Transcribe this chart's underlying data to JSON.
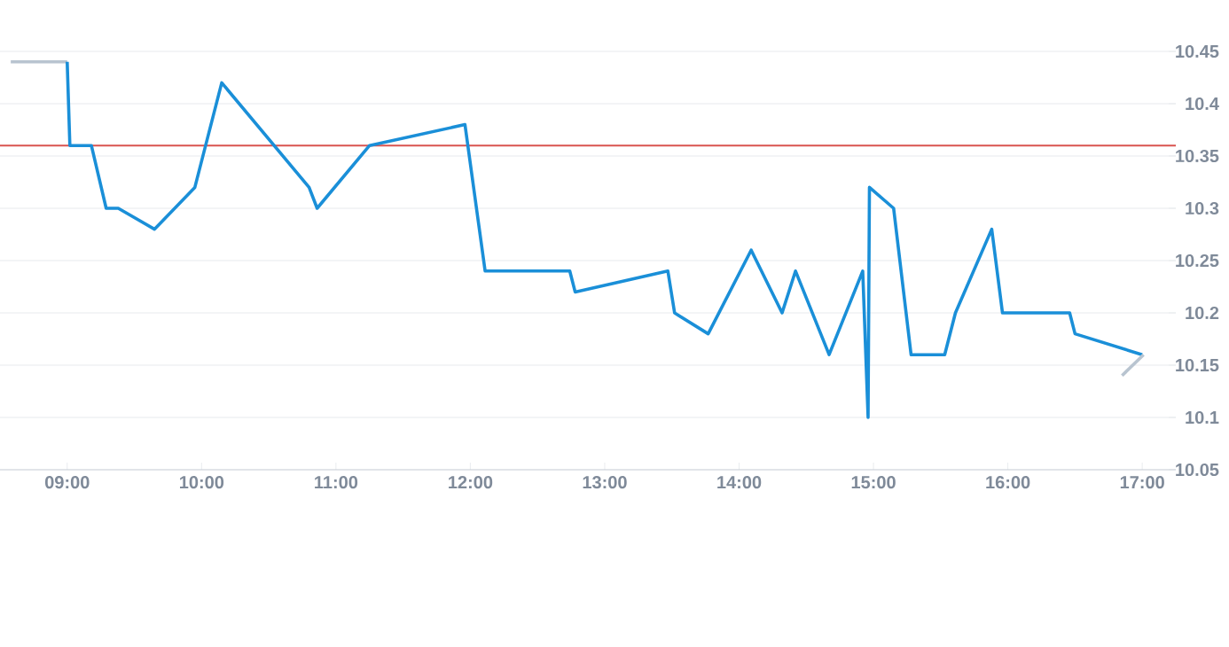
{
  "chart_data": {
    "type": "line",
    "grid": "y",
    "xlim": [
      8.5,
      17.25
    ],
    "ylim": [
      10.05,
      10.45
    ],
    "xticks": [
      {
        "value": 9,
        "label": "09:00"
      },
      {
        "value": 10,
        "label": "10:00"
      },
      {
        "value": 11,
        "label": "11:00"
      },
      {
        "value": 12,
        "label": "12:00"
      },
      {
        "value": 13,
        "label": "13:00"
      },
      {
        "value": 14,
        "label": "14:00"
      },
      {
        "value": 15,
        "label": "15:00"
      },
      {
        "value": 16,
        "label": "16:00"
      },
      {
        "value": 17,
        "label": "17:00"
      }
    ],
    "yticks": [
      10.05,
      10.1,
      10.15,
      10.2,
      10.25,
      10.3,
      10.35,
      10.4,
      10.45
    ],
    "series": [
      {
        "color": "#b8c4d0",
        "x": [
          8.58,
          9.0
        ],
        "values": [
          10.44,
          10.44
        ]
      },
      {
        "color": "#1a8fd8",
        "x": [
          9.0,
          9.02,
          9.18,
          9.29,
          9.38,
          9.65,
          9.95,
          10.15,
          10.8,
          10.86,
          11.25,
          11.96,
          12.11,
          12.74,
          12.78,
          13.47,
          13.52,
          13.77,
          14.09,
          14.32,
          14.42,
          14.67,
          14.92,
          14.96,
          14.97,
          15.15,
          15.28,
          15.53,
          15.61,
          15.88,
          15.96,
          16.46,
          16.5,
          17.0
        ],
        "values": [
          10.44,
          10.36,
          10.36,
          10.3,
          10.3,
          10.28,
          10.32,
          10.42,
          10.32,
          10.3,
          10.36,
          10.38,
          10.24,
          10.24,
          10.22,
          10.24,
          10.2,
          10.18,
          10.26,
          10.2,
          10.24,
          10.16,
          10.24,
          10.1,
          10.32,
          10.3,
          10.16,
          10.16,
          10.2,
          10.28,
          10.2,
          10.2,
          10.18,
          10.16
        ]
      },
      {
        "color": "#b8c4d0",
        "x": [
          16.85,
          17.01
        ],
        "values": [
          10.14,
          10.16
        ]
      }
    ],
    "ref_lines": [
      {
        "axis": "y",
        "value": 10.36,
        "color": "#d9534f"
      }
    ]
  }
}
